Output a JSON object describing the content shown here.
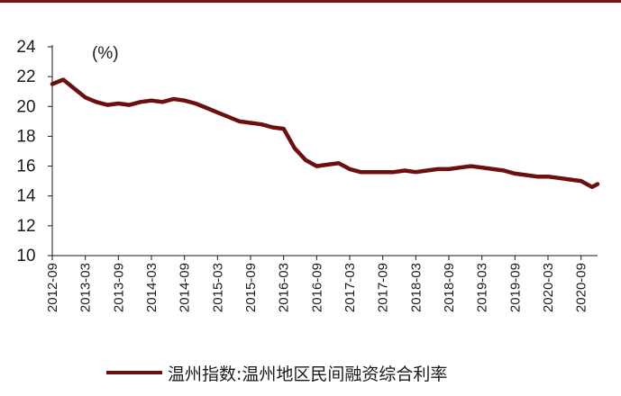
{
  "chart_data": {
    "type": "line",
    "unit_label": "(%)",
    "ylim": [
      10,
      24
    ],
    "y_ticks": [
      "10",
      "12",
      "14",
      "16",
      "18",
      "20",
      "22",
      "24"
    ],
    "x_ticks": [
      "2012-09",
      "2013-03",
      "2013-09",
      "2014-03",
      "2014-09",
      "2015-03",
      "2015-09",
      "2016-03",
      "2016-09",
      "2017-03",
      "2017-09",
      "2018-03",
      "2018-09",
      "2019-03",
      "2019-09",
      "2020-03",
      "2020-09"
    ],
    "grid": false,
    "legend_position": "bottom",
    "series": [
      {
        "name": "温州指数:温州地区民间融资综合利率",
        "color": "#6b0f0f",
        "x": [
          "2012-09",
          "2012-11",
          "2013-01",
          "2013-03",
          "2013-05",
          "2013-07",
          "2013-09",
          "2013-11",
          "2014-01",
          "2014-03",
          "2014-05",
          "2014-07",
          "2014-09",
          "2014-11",
          "2015-01",
          "2015-03",
          "2015-05",
          "2015-07",
          "2015-09",
          "2015-11",
          "2016-01",
          "2016-03",
          "2016-05",
          "2016-07",
          "2016-09",
          "2016-11",
          "2017-01",
          "2017-03",
          "2017-05",
          "2017-07",
          "2017-09",
          "2017-11",
          "2018-01",
          "2018-03",
          "2018-05",
          "2018-07",
          "2018-09",
          "2018-11",
          "2019-01",
          "2019-03",
          "2019-05",
          "2019-07",
          "2019-09",
          "2019-11",
          "2020-01",
          "2020-03",
          "2020-05",
          "2020-07",
          "2020-09",
          "2020-11",
          "2020-12"
        ],
        "values": [
          21.5,
          21.8,
          21.2,
          20.6,
          20.3,
          20.1,
          20.2,
          20.1,
          20.3,
          20.4,
          20.3,
          20.5,
          20.4,
          20.2,
          19.9,
          19.6,
          19.3,
          19.0,
          18.9,
          18.8,
          18.6,
          18.5,
          17.2,
          16.4,
          16.0,
          16.1,
          16.2,
          15.8,
          15.6,
          15.6,
          15.6,
          15.6,
          15.7,
          15.6,
          15.7,
          15.8,
          15.8,
          15.9,
          16.0,
          15.9,
          15.8,
          15.7,
          15.5,
          15.4,
          15.3,
          15.3,
          15.2,
          15.1,
          15.0,
          14.6,
          14.8
        ]
      }
    ]
  }
}
